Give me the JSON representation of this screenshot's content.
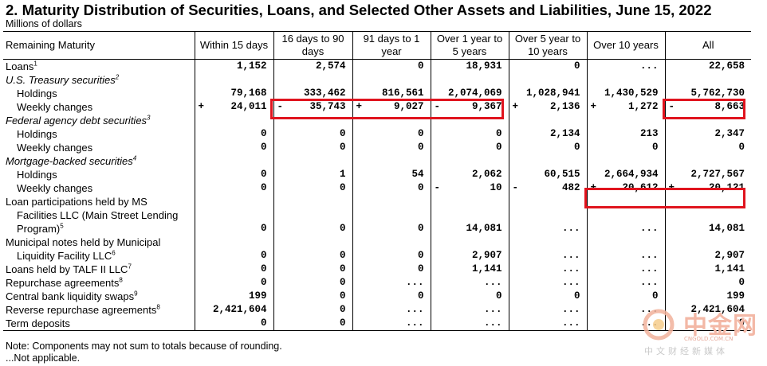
{
  "title": "2. Maturity Distribution of Securities, Loans, and Selected Other Assets and Liabilities, June 15, 2022",
  "subtitle": "Millions of dollars",
  "columns": [
    "Remaining Maturity",
    "Within 15 days",
    "16 days to 90 days",
    "91 days to 1 year",
    "Over 1 year to 5 years",
    "Over 5 year to 10 years",
    "Over 10 years",
    "All"
  ],
  "rows": [
    {
      "label": "Loans",
      "sup": "1",
      "style": "top",
      "cells": [
        {
          "s": "",
          "v": "1,152"
        },
        {
          "s": "",
          "v": "2,574"
        },
        {
          "s": "",
          "v": "0"
        },
        {
          "s": "",
          "v": "18,931"
        },
        {
          "s": "",
          "v": "0"
        },
        {
          "s": "",
          "v": "..."
        },
        {
          "s": "",
          "v": "22,658"
        }
      ]
    },
    {
      "label": "U.S. Treasury securities",
      "sup": "2",
      "style": "italic",
      "cells": []
    },
    {
      "label": "Holdings",
      "sup": "",
      "style": "indent",
      "cells": [
        {
          "s": "",
          "v": "79,168"
        },
        {
          "s": "",
          "v": "333,462"
        },
        {
          "s": "",
          "v": "816,561"
        },
        {
          "s": "",
          "v": "2,074,069"
        },
        {
          "s": "",
          "v": "1,028,941"
        },
        {
          "s": "",
          "v": "1,430,529"
        },
        {
          "s": "",
          "v": "5,762,730"
        }
      ]
    },
    {
      "label": "Weekly changes",
      "sup": "",
      "style": "indent",
      "cells": [
        {
          "s": "+",
          "v": "24,011"
        },
        {
          "s": "-",
          "v": "35,743"
        },
        {
          "s": "+",
          "v": "9,027"
        },
        {
          "s": "-",
          "v": "9,367"
        },
        {
          "s": "+",
          "v": "2,136"
        },
        {
          "s": "+",
          "v": "1,272"
        },
        {
          "s": "-",
          "v": "8,663"
        }
      ]
    },
    {
      "label": "Federal agency debt securities",
      "sup": "3",
      "style": "italic",
      "cells": []
    },
    {
      "label": "Holdings",
      "sup": "",
      "style": "indent",
      "cells": [
        {
          "s": "",
          "v": "0"
        },
        {
          "s": "",
          "v": "0"
        },
        {
          "s": "",
          "v": "0"
        },
        {
          "s": "",
          "v": "0"
        },
        {
          "s": "",
          "v": "2,134"
        },
        {
          "s": "",
          "v": "213"
        },
        {
          "s": "",
          "v": "2,347"
        }
      ]
    },
    {
      "label": "Weekly changes",
      "sup": "",
      "style": "indent",
      "cells": [
        {
          "s": "",
          "v": "0"
        },
        {
          "s": "",
          "v": "0"
        },
        {
          "s": "",
          "v": "0"
        },
        {
          "s": "",
          "v": "0"
        },
        {
          "s": "",
          "v": "0"
        },
        {
          "s": "",
          "v": "0"
        },
        {
          "s": "",
          "v": "0"
        }
      ]
    },
    {
      "label": "Mortgage-backed securities",
      "sup": "4",
      "style": "italic",
      "cells": []
    },
    {
      "label": "Holdings",
      "sup": "",
      "style": "indent",
      "cells": [
        {
          "s": "",
          "v": "0"
        },
        {
          "s": "",
          "v": "1"
        },
        {
          "s": "",
          "v": "54"
        },
        {
          "s": "",
          "v": "2,062"
        },
        {
          "s": "",
          "v": "60,515"
        },
        {
          "s": "",
          "v": "2,664,934"
        },
        {
          "s": "",
          "v": "2,727,567"
        }
      ]
    },
    {
      "label": "Weekly changes",
      "sup": "",
      "style": "indent",
      "cells": [
        {
          "s": "",
          "v": "0"
        },
        {
          "s": "",
          "v": "0"
        },
        {
          "s": "",
          "v": "0"
        },
        {
          "s": "-",
          "v": "10"
        },
        {
          "s": "-",
          "v": "482"
        },
        {
          "s": "+",
          "v": "20,612"
        },
        {
          "s": "+",
          "v": "20,121"
        }
      ]
    },
    {
      "label": "Loan participations held by MS",
      "sup": "",
      "style": "plain",
      "cells": []
    },
    {
      "label": "Facilities LLC (Main Street Lending",
      "sup": "",
      "style": "indent",
      "cells": []
    },
    {
      "label": "Program)",
      "sup": "5",
      "style": "indent",
      "cells": [
        {
          "s": "",
          "v": "0"
        },
        {
          "s": "",
          "v": "0"
        },
        {
          "s": "",
          "v": "0"
        },
        {
          "s": "",
          "v": "14,081"
        },
        {
          "s": "",
          "v": "..."
        },
        {
          "s": "",
          "v": "..."
        },
        {
          "s": "",
          "v": "14,081"
        }
      ]
    },
    {
      "label": "Municipal notes held by Municipal",
      "sup": "",
      "style": "plain",
      "cells": []
    },
    {
      "label": "Liquidity Facility LLC",
      "sup": "6",
      "style": "indent",
      "cells": [
        {
          "s": "",
          "v": "0"
        },
        {
          "s": "",
          "v": "0"
        },
        {
          "s": "",
          "v": "0"
        },
        {
          "s": "",
          "v": "2,907"
        },
        {
          "s": "",
          "v": "..."
        },
        {
          "s": "",
          "v": "..."
        },
        {
          "s": "",
          "v": "2,907"
        }
      ]
    },
    {
      "label": "Loans held by TALF II LLC",
      "sup": "7",
      "style": "plain",
      "cells": [
        {
          "s": "",
          "v": "0"
        },
        {
          "s": "",
          "v": "0"
        },
        {
          "s": "",
          "v": "0"
        },
        {
          "s": "",
          "v": "1,141"
        },
        {
          "s": "",
          "v": "..."
        },
        {
          "s": "",
          "v": "..."
        },
        {
          "s": "",
          "v": "1,141"
        }
      ]
    },
    {
      "label": "Repurchase agreements",
      "sup": "8",
      "style": "plain",
      "cells": [
        {
          "s": "",
          "v": "0"
        },
        {
          "s": "",
          "v": "0"
        },
        {
          "s": "",
          "v": "..."
        },
        {
          "s": "",
          "v": "..."
        },
        {
          "s": "",
          "v": "..."
        },
        {
          "s": "",
          "v": "..."
        },
        {
          "s": "",
          "v": "0"
        }
      ]
    },
    {
      "label": "Central bank liquidity swaps",
      "sup": "9",
      "style": "plain",
      "cells": [
        {
          "s": "",
          "v": "199"
        },
        {
          "s": "",
          "v": "0"
        },
        {
          "s": "",
          "v": "0"
        },
        {
          "s": "",
          "v": "0"
        },
        {
          "s": "",
          "v": "0"
        },
        {
          "s": "",
          "v": "0"
        },
        {
          "s": "",
          "v": "199"
        }
      ]
    },
    {
      "label": "Reverse repurchase agreements",
      "sup": "8",
      "style": "plain",
      "cells": [
        {
          "s": "",
          "v": "2,421,604"
        },
        {
          "s": "",
          "v": "0"
        },
        {
          "s": "",
          "v": "..."
        },
        {
          "s": "",
          "v": "..."
        },
        {
          "s": "",
          "v": "..."
        },
        {
          "s": "",
          "v": "..."
        },
        {
          "s": "",
          "v": "2,421,604"
        }
      ]
    },
    {
      "label": "Term deposits",
      "sup": "",
      "style": "plain",
      "cells": [
        {
          "s": "",
          "v": "0"
        },
        {
          "s": "",
          "v": "0"
        },
        {
          "s": "",
          "v": "..."
        },
        {
          "s": "",
          "v": "..."
        },
        {
          "s": "",
          "v": "..."
        },
        {
          "s": "",
          "v": "..."
        },
        {
          "s": "",
          "v": "0"
        }
      ]
    }
  ],
  "notes": [
    "Note: Components may not sum to totals because of rounding.",
    "...Not applicable."
  ],
  "watermark": {
    "name": "中金网",
    "url": "CNGOLD.COM.CN",
    "tagline": "中文财经新媒体"
  },
  "highlight_color": "#e0141e"
}
